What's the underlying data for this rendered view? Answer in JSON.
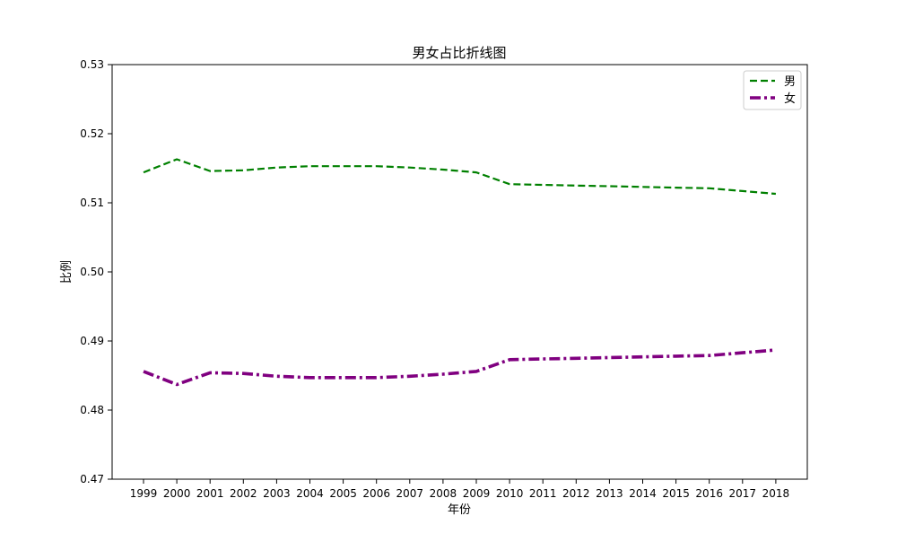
{
  "chart_data": {
    "type": "line",
    "title": "男女占比折线图",
    "xlabel": "年份",
    "ylabel": "比例",
    "categories": [
      "1999",
      "2000",
      "2001",
      "2002",
      "2003",
      "2004",
      "2005",
      "2006",
      "2007",
      "2008",
      "2009",
      "2010",
      "2011",
      "2012",
      "2013",
      "2014",
      "2015",
      "2016",
      "2017",
      "2018"
    ],
    "y_ticks": [
      "0.47",
      "0.48",
      "0.49",
      "0.50",
      "0.51",
      "0.52",
      "0.53"
    ],
    "ylim": [
      0.47,
      0.53
    ],
    "grid": false,
    "legend_position": "top-right",
    "series": [
      {
        "name": "男",
        "color": "#008000",
        "style": "dashed",
        "values": [
          0.5144,
          0.5163,
          0.5146,
          0.5147,
          0.5151,
          0.5153,
          0.5153,
          0.5153,
          0.5151,
          0.5148,
          0.5144,
          0.5127,
          0.5126,
          0.5125,
          0.5124,
          0.5123,
          0.5122,
          0.5121,
          0.5117,
          0.5113
        ]
      },
      {
        "name": "女",
        "color": "#800080",
        "style": "dashdot",
        "values": [
          0.4856,
          0.4837,
          0.4854,
          0.4853,
          0.4849,
          0.4847,
          0.4847,
          0.4847,
          0.4849,
          0.4852,
          0.4856,
          0.4873,
          0.4874,
          0.4875,
          0.4876,
          0.4877,
          0.4878,
          0.4879,
          0.4883,
          0.4887
        ]
      }
    ]
  }
}
